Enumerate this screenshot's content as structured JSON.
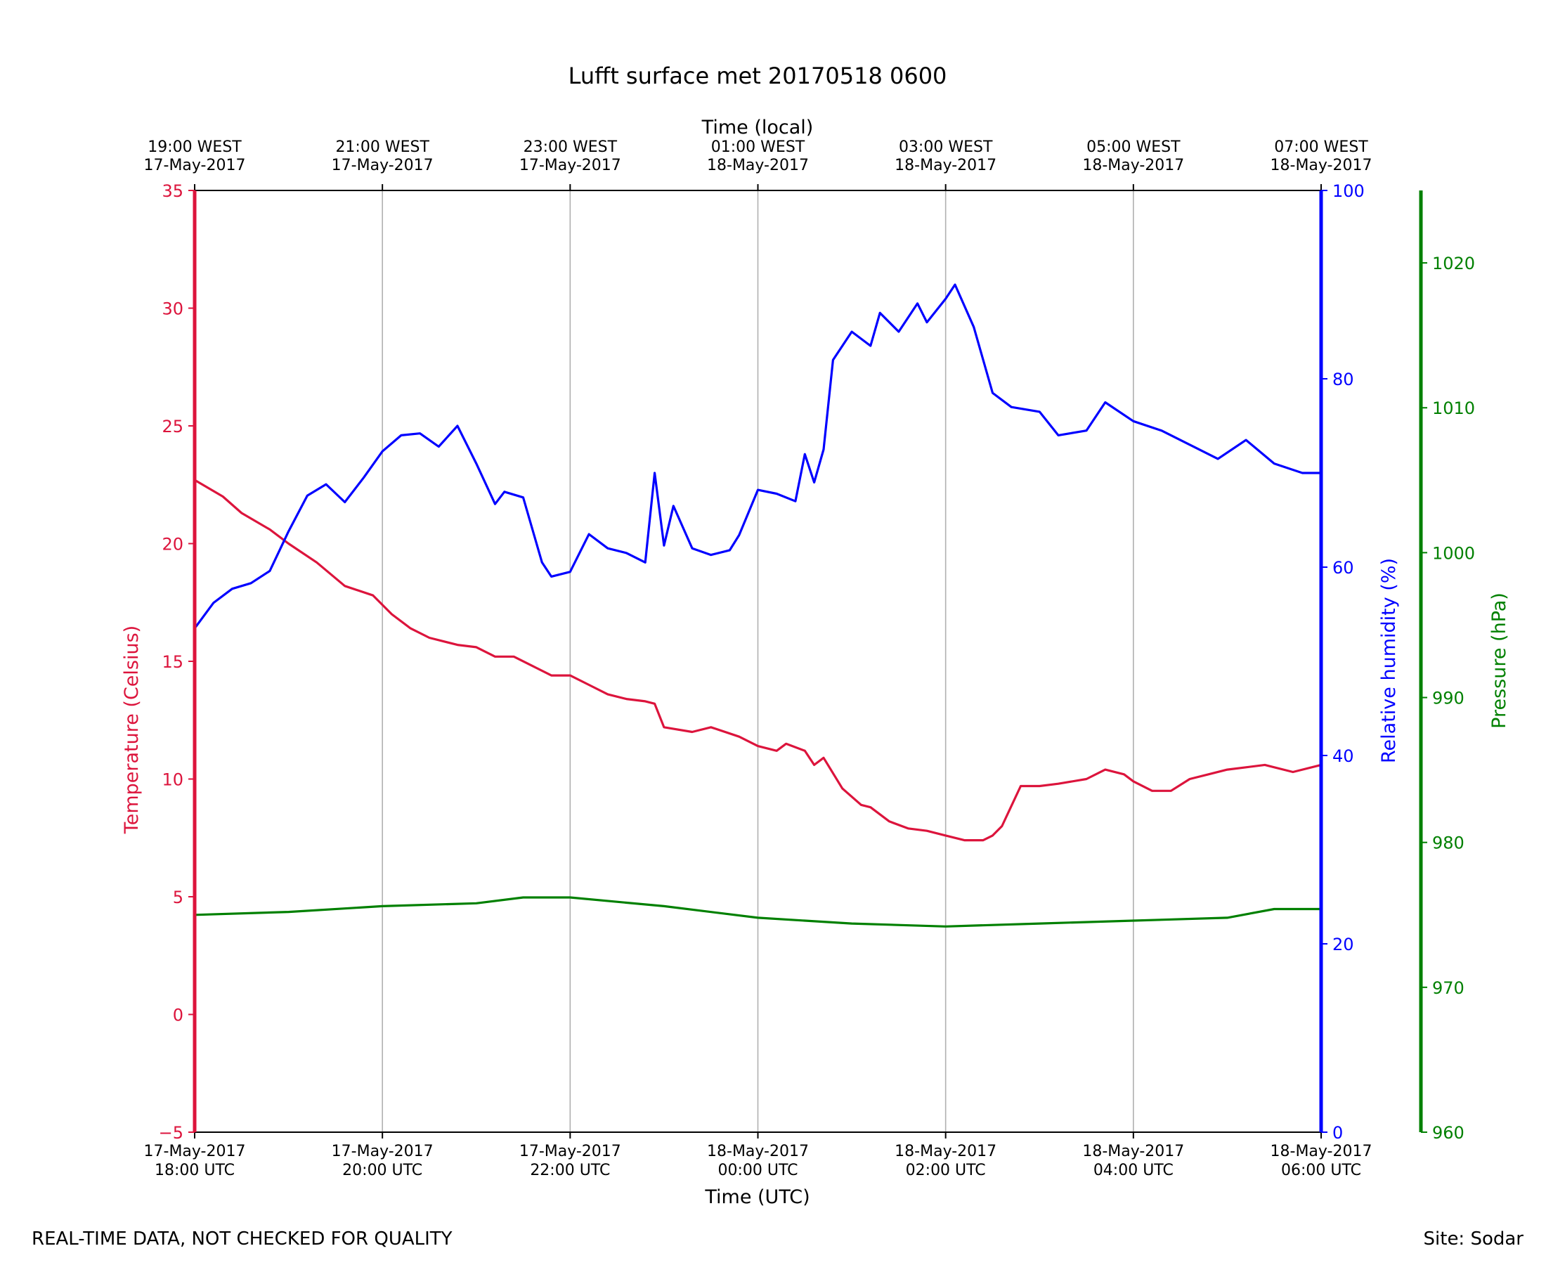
{
  "chart_data": {
    "type": "line",
    "title": "Lufft surface met 20170518 0600",
    "x_bottom_label": "Time (UTC)",
    "x_top_label": "Time (local)",
    "x_range_hours": [
      0,
      12
    ],
    "x_bottom_ticks": [
      {
        "h": 0,
        "date": "17-May-2017",
        "time": "18:00 UTC"
      },
      {
        "h": 2,
        "date": "17-May-2017",
        "time": "20:00 UTC"
      },
      {
        "h": 4,
        "date": "17-May-2017",
        "time": "22:00 UTC"
      },
      {
        "h": 6,
        "date": "18-May-2017",
        "time": "00:00 UTC"
      },
      {
        "h": 8,
        "date": "18-May-2017",
        "time": "02:00 UTC"
      },
      {
        "h": 10,
        "date": "18-May-2017",
        "time": "04:00 UTC"
      },
      {
        "h": 12,
        "date": "18-May-2017",
        "time": "06:00 UTC"
      }
    ],
    "x_top_ticks": [
      {
        "h": 0,
        "time": "19:00 WEST",
        "date": "17-May-2017"
      },
      {
        "h": 2,
        "time": "21:00 WEST",
        "date": "17-May-2017"
      },
      {
        "h": 4,
        "time": "23:00 WEST",
        "date": "17-May-2017"
      },
      {
        "h": 6,
        "time": "01:00 WEST",
        "date": "18-May-2017"
      },
      {
        "h": 8,
        "time": "03:00 WEST",
        "date": "18-May-2017"
      },
      {
        "h": 10,
        "time": "05:00 WEST",
        "date": "18-May-2017"
      },
      {
        "h": 12,
        "time": "07:00 WEST",
        "date": "18-May-2017"
      }
    ],
    "grid": "vertical",
    "axes": {
      "temperature": {
        "label": "Temperature (Celsius)",
        "color": "#dc143c",
        "ylim": [
          -5,
          35
        ],
        "ticks": [
          "−5",
          "0",
          "5",
          "10",
          "15",
          "20",
          "25",
          "30",
          "35"
        ],
        "tick_values": [
          -5,
          0,
          5,
          10,
          15,
          20,
          25,
          30,
          35
        ]
      },
      "humidity": {
        "label": "Relative humidity (%)",
        "color": "#0000ff",
        "ylim": [
          0,
          100
        ],
        "ticks": [
          "0",
          "20",
          "40",
          "60",
          "80",
          "100"
        ],
        "tick_values": [
          0,
          20,
          40,
          60,
          80,
          100
        ]
      },
      "pressure": {
        "label": "Pressure (hPa)",
        "color": "#008000",
        "ylim": [
          960,
          1025
        ],
        "ticks": [
          "960",
          "970",
          "980",
          "990",
          "1000",
          "1010",
          "1020"
        ],
        "tick_values": [
          960,
          970,
          980,
          990,
          1000,
          1010,
          1020
        ]
      }
    },
    "series": [
      {
        "name": "Temperature",
        "axis": "temperature",
        "color": "#dc143c",
        "x": [
          0,
          0.3,
          0.5,
          0.8,
          1.0,
          1.3,
          1.6,
          1.9,
          2.1,
          2.3,
          2.5,
          2.8,
          3.0,
          3.2,
          3.4,
          3.6,
          3.8,
          4.0,
          4.2,
          4.4,
          4.6,
          4.8,
          4.9,
          5.0,
          5.3,
          5.5,
          5.8,
          6.0,
          6.2,
          6.3,
          6.5,
          6.6,
          6.7,
          6.9,
          7.1,
          7.2,
          7.4,
          7.6,
          7.8,
          8.0,
          8.2,
          8.4,
          8.5,
          8.6,
          8.8,
          9.0,
          9.2,
          9.5,
          9.7,
          9.9,
          10.0,
          10.2,
          10.4,
          10.6,
          10.8,
          11.0,
          11.2,
          11.4,
          11.7,
          12.0
        ],
        "values": [
          22.7,
          22.0,
          21.3,
          20.6,
          20.0,
          19.2,
          18.2,
          17.8,
          17.0,
          16.4,
          16.0,
          15.7,
          15.6,
          15.2,
          15.2,
          14.8,
          14.4,
          14.4,
          14.0,
          13.6,
          13.4,
          13.3,
          13.2,
          12.2,
          12.0,
          12.2,
          11.8,
          11.4,
          11.2,
          11.5,
          11.2,
          10.6,
          10.9,
          9.6,
          8.9,
          8.8,
          8.2,
          7.9,
          7.8,
          7.6,
          7.4,
          7.4,
          7.6,
          8.0,
          9.7,
          9.7,
          9.8,
          10.0,
          10.4,
          10.2,
          9.9,
          9.5,
          9.5,
          10.0,
          10.2,
          10.4,
          10.5,
          10.6,
          10.3,
          10.6
        ]
      },
      {
        "name": "Relative humidity",
        "axis": "humidity",
        "color": "#0000ff",
        "x": [
          0,
          0.2,
          0.4,
          0.6,
          0.8,
          1.0,
          1.2,
          1.4,
          1.6,
          1.8,
          2.0,
          2.2,
          2.4,
          2.6,
          2.8,
          3.0,
          3.2,
          3.3,
          3.5,
          3.7,
          3.8,
          4.0,
          4.2,
          4.4,
          4.6,
          4.8,
          4.9,
          5.0,
          5.1,
          5.3,
          5.5,
          5.7,
          5.8,
          6.0,
          6.2,
          6.4,
          6.5,
          6.6,
          6.7,
          6.8,
          7.0,
          7.2,
          7.3,
          7.5,
          7.7,
          7.8,
          8.0,
          8.1,
          8.3,
          8.5,
          8.7,
          9.0,
          9.2,
          9.5,
          9.7,
          10.0,
          10.3,
          10.6,
          10.9,
          11.2,
          11.5,
          11.8,
          12.0
        ],
        "values": [
          53.5,
          56.2,
          57.7,
          58.3,
          59.6,
          63.8,
          67.6,
          68.8,
          66.9,
          69.5,
          72.3,
          74.0,
          74.2,
          72.8,
          75.0,
          71.0,
          66.7,
          68.0,
          67.4,
          60.5,
          59.0,
          59.5,
          63.5,
          62.0,
          61.5,
          60.5,
          70.0,
          62.3,
          66.5,
          62.0,
          61.3,
          61.8,
          63.4,
          68.2,
          67.8,
          67.0,
          72.0,
          69.0,
          72.5,
          82.0,
          85.0,
          83.5,
          87.0,
          85.0,
          88.0,
          86.0,
          88.5,
          90.0,
          85.5,
          78.5,
          77.0,
          76.5,
          74.0,
          74.5,
          77.5,
          75.5,
          74.5,
          73.0,
          71.5,
          73.5,
          71.0,
          70.0,
          70.0
        ]
      },
      {
        "name": "Pressure",
        "axis": "pressure",
        "color": "#008000",
        "x": [
          0,
          1,
          2,
          3,
          3.5,
          4,
          5,
          6,
          7,
          8,
          9,
          10,
          11,
          11.5,
          12
        ],
        "values": [
          975.0,
          975.2,
          975.6,
          975.8,
          976.2,
          976.2,
          975.6,
          974.8,
          974.4,
          974.2,
          974.4,
          974.6,
          974.8,
          975.4,
          975.4
        ]
      }
    ]
  },
  "footer": {
    "left": "REAL-TIME DATA, NOT CHECKED FOR QUALITY",
    "right": "Site: Sodar"
  }
}
